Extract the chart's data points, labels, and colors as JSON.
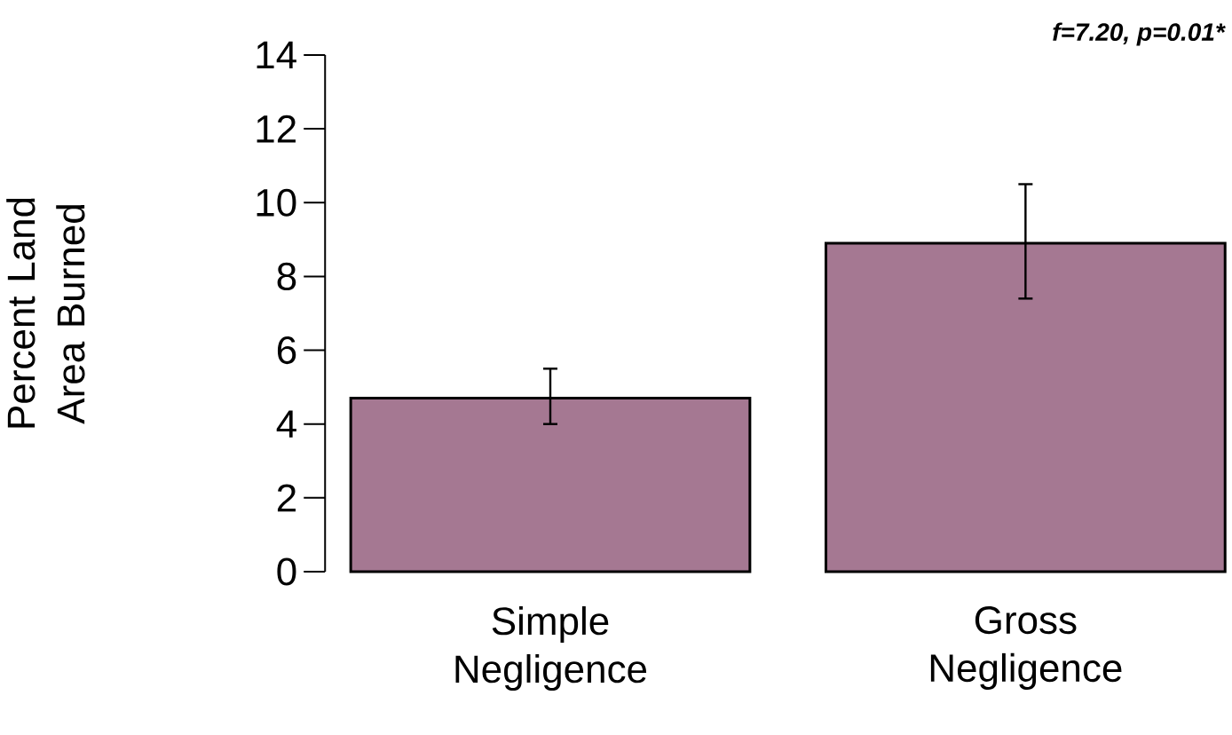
{
  "chart_data": {
    "type": "bar",
    "ylabel": "Percent Land Area Burned",
    "categories": [
      "Simple Negligence",
      "Gross Negligence"
    ],
    "values": [
      4.7,
      8.9
    ],
    "color": "#a57892",
    "errors": [
      [
        4.0,
        5.5
      ],
      [
        7.4,
        10.5
      ]
    ],
    "ylim": [
      0,
      14
    ],
    "yticks": [
      0,
      2,
      4,
      6,
      8,
      10,
      12,
      14
    ],
    "grid": false,
    "annotations": [
      "f=7.20, p=0.01*"
    ]
  }
}
